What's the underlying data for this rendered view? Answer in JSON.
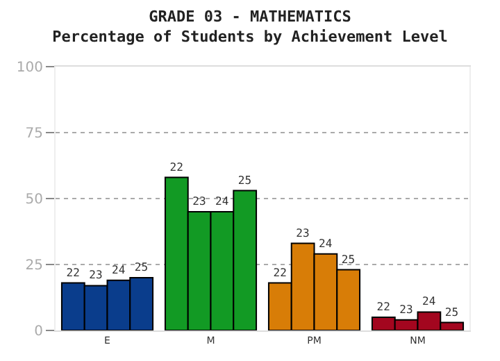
{
  "chart_data": {
    "type": "bar",
    "title": "GRADE 03 - MATHEMATICS",
    "subtitle": "Percentage of Students by Achievement Level",
    "categories": [
      "E",
      "M",
      "PM",
      "NM"
    ],
    "series": [
      {
        "name": "22",
        "colors": [
          "#0a3d8c",
          "#129a24",
          "#d87d07",
          "#a3061f"
        ],
        "values": [
          18,
          58,
          18,
          5
        ]
      },
      {
        "name": "23",
        "colors": [
          "#0a3d8c",
          "#129a24",
          "#d87d07",
          "#a3061f"
        ],
        "values": [
          17,
          45,
          33,
          4
        ]
      },
      {
        "name": "24",
        "colors": [
          "#0a3d8c",
          "#129a24",
          "#d87d07",
          "#a3061f"
        ],
        "values": [
          19,
          45,
          29,
          7
        ]
      },
      {
        "name": "25",
        "colors": [
          "#0a3d8c",
          "#129a24",
          "#d87d07",
          "#a3061f"
        ],
        "values": [
          20,
          53,
          23,
          3
        ]
      }
    ],
    "ylim": [
      0,
      100
    ],
    "yticks": [
      0,
      25,
      50,
      75,
      100
    ],
    "grid": "y",
    "legend": false
  }
}
